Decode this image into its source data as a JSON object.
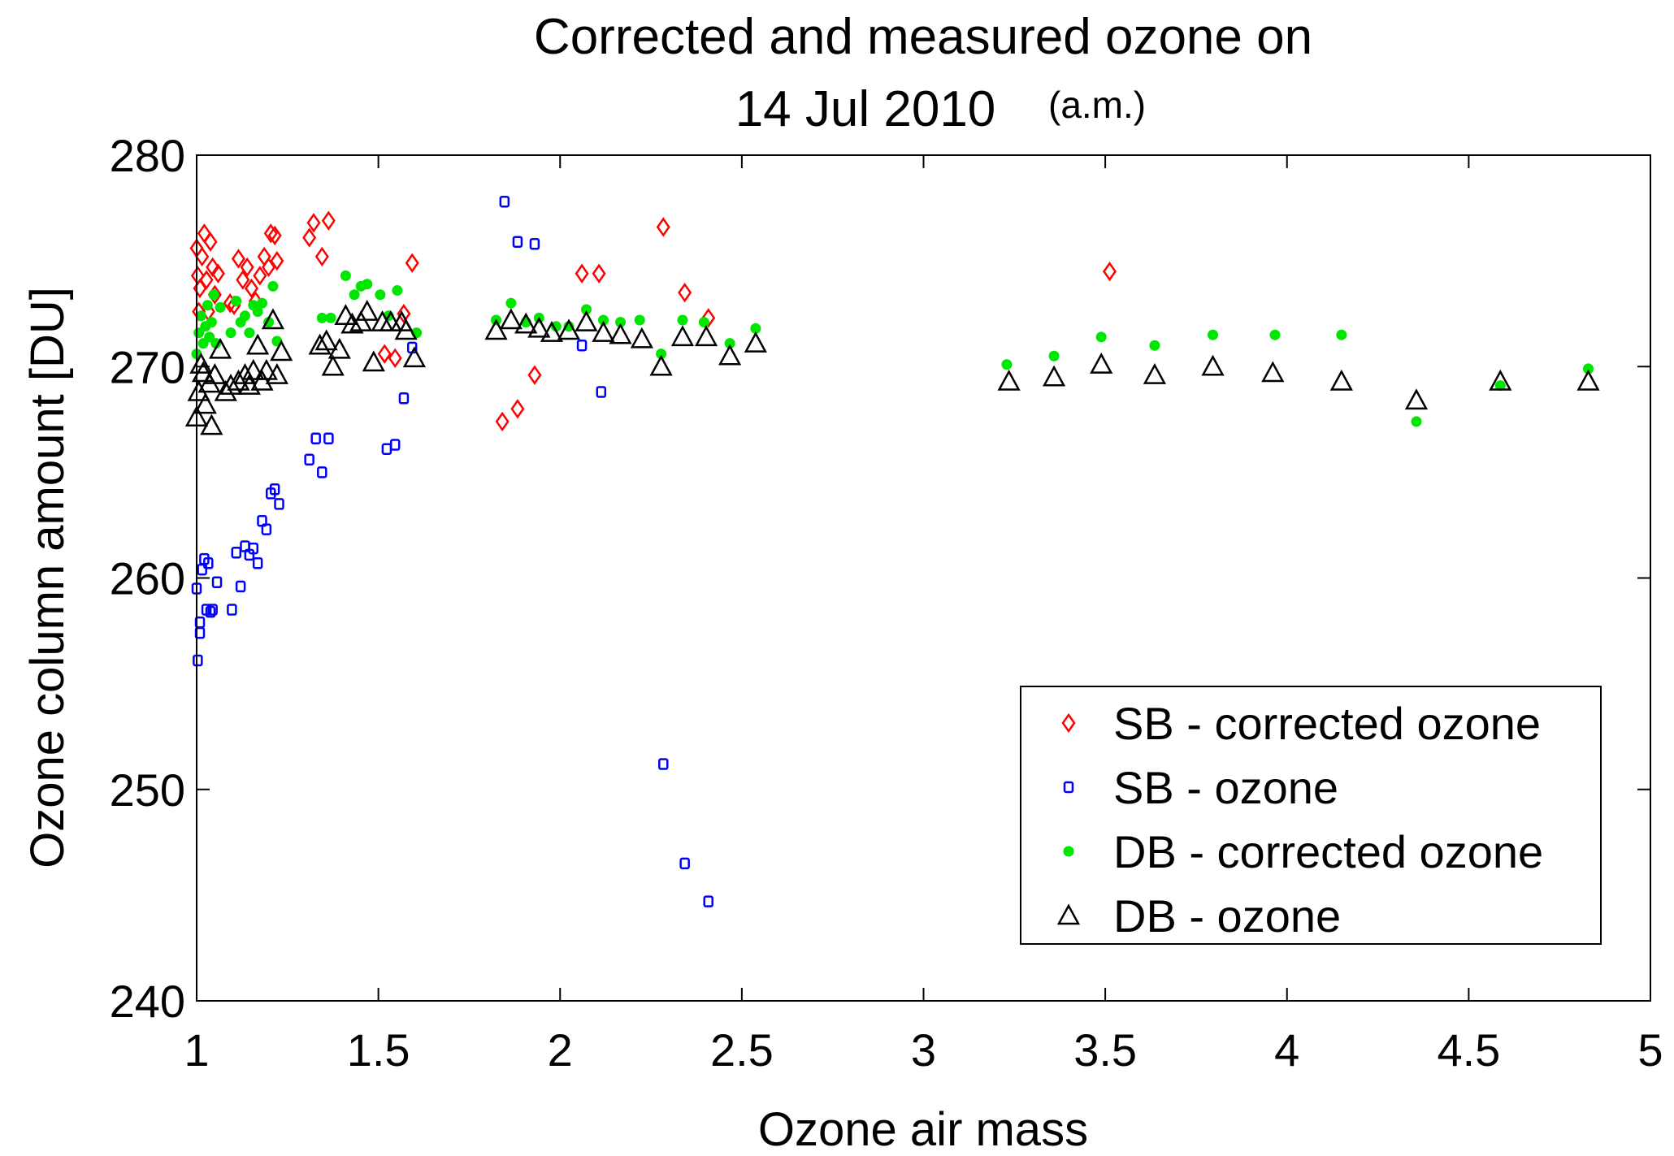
{
  "chart_data": {
    "type": "scatter",
    "title_line1": "Corrected and measured ozone on",
    "title_line2": "14 Jul 2010",
    "title_suffix": "(a.m.)",
    "xlabel": "Ozone air mass",
    "ylabel": "Ozone column amount [DU]",
    "xlim": [
      1,
      5
    ],
    "ylim": [
      240,
      280
    ],
    "xticks": [
      "1",
      "1.5",
      "2",
      "2.5",
      "3",
      "3.5",
      "4",
      "4.5",
      "5"
    ],
    "yticks": [
      "240",
      "250",
      "260",
      "270",
      "280"
    ],
    "grid": false,
    "legend_position": "bottom-right",
    "series": [
      {
        "name": "SB - corrected ozone",
        "marker": "diamond",
        "color": "#ff0000",
        "x": [
          1.0,
          1.003,
          1.009,
          1.015,
          1.021,
          1.027,
          1.032,
          1.038,
          1.044,
          1.05,
          1.059,
          1.006,
          1.092,
          1.103,
          1.115,
          1.127,
          1.139,
          1.151,
          1.162,
          1.174,
          1.186,
          1.198,
          1.204,
          1.215,
          1.221,
          1.31,
          1.322,
          1.345,
          1.363,
          1.57,
          1.517,
          1.546,
          1.593,
          1.841,
          1.883,
          1.93,
          2.06,
          2.107,
          2.284,
          2.343,
          2.408,
          3.512
        ],
        "y": [
          275.6,
          274.3,
          273.7,
          275.2,
          276.3,
          274.1,
          272.6,
          275.9,
          274.7,
          273.4,
          274.4,
          272.6,
          273.0,
          272.9,
          275.1,
          274.1,
          274.7,
          273.7,
          273.1,
          274.3,
          275.2,
          274.7,
          276.3,
          276.2,
          275.0,
          276.1,
          276.8,
          275.2,
          276.9,
          272.5,
          270.6,
          270.4,
          274.9,
          267.4,
          268.0,
          269.6,
          274.4,
          274.4,
          276.6,
          273.5,
          272.3,
          274.5
        ]
      },
      {
        "name": "SB - ozone",
        "marker": "square",
        "color": "#0000ff",
        "x": [
          1.0,
          1.003,
          1.009,
          1.015,
          1.021,
          1.027,
          1.032,
          1.038,
          1.044,
          1.056,
          1.009,
          1.097,
          1.109,
          1.121,
          1.133,
          1.145,
          1.156,
          1.168,
          1.18,
          1.192,
          1.204,
          1.215,
          1.227,
          1.31,
          1.328,
          1.345,
          1.363,
          1.523,
          1.546,
          1.57,
          1.593,
          1.847,
          1.883,
          1.93,
          2.06,
          2.113,
          2.284,
          2.343,
          2.408
        ],
        "y": [
          259.5,
          256.1,
          257.4,
          260.4,
          260.9,
          258.5,
          260.7,
          258.4,
          258.5,
          259.8,
          257.9,
          258.5,
          261.2,
          259.6,
          261.5,
          261.1,
          261.4,
          260.7,
          262.7,
          262.3,
          264.0,
          264.2,
          263.5,
          265.6,
          266.6,
          265.0,
          266.6,
          266.1,
          266.3,
          268.5,
          270.9,
          277.8,
          275.9,
          275.8,
          271.0,
          268.8,
          251.2,
          246.5,
          244.7
        ]
      },
      {
        "name": "DB - corrected ozone",
        "marker": "dot",
        "color": "#00e600",
        "x": [
          1.0,
          1.006,
          1.012,
          1.018,
          1.024,
          1.03,
          1.035,
          1.041,
          1.047,
          1.053,
          1.065,
          1.094,
          1.109,
          1.121,
          1.133,
          1.145,
          1.156,
          1.168,
          1.18,
          1.198,
          1.21,
          1.221,
          1.345,
          1.369,
          1.41,
          1.434,
          1.452,
          1.469,
          1.505,
          1.528,
          1.552,
          1.605,
          1.824,
          1.865,
          1.906,
          1.942,
          1.989,
          2.024,
          2.072,
          2.119,
          2.166,
          2.219,
          2.278,
          2.337,
          2.396,
          2.467,
          2.538,
          3.229,
          3.359,
          3.489,
          3.636,
          3.796,
          3.967,
          4.15,
          4.356,
          4.587,
          4.829
        ],
        "y": [
          270.6,
          271.6,
          272.4,
          271.1,
          271.9,
          272.9,
          271.4,
          272.1,
          273.4,
          271.1,
          272.8,
          271.6,
          273.1,
          272.1,
          272.4,
          271.6,
          272.9,
          272.6,
          273.0,
          272.1,
          273.8,
          271.2,
          272.3,
          272.3,
          274.3,
          273.4,
          273.8,
          273.9,
          273.4,
          272.4,
          273.6,
          271.6,
          272.2,
          273.0,
          272.1,
          272.3,
          271.9,
          271.9,
          272.7,
          272.2,
          272.1,
          272.2,
          270.6,
          272.2,
          272.1,
          271.1,
          271.8,
          270.1,
          270.5,
          271.4,
          271.0,
          271.5,
          271.5,
          271.5,
          267.4,
          269.1,
          269.9
        ]
      },
      {
        "name": "DB - ozone",
        "marker": "triangle",
        "color": "#000000",
        "x": [
          1.0,
          1.006,
          1.012,
          1.018,
          1.024,
          1.035,
          1.041,
          1.05,
          1.065,
          1.08,
          1.094,
          1.115,
          1.133,
          1.145,
          1.156,
          1.168,
          1.18,
          1.192,
          1.21,
          1.221,
          1.233,
          1.339,
          1.357,
          1.375,
          1.393,
          1.41,
          1.428,
          1.452,
          1.469,
          1.487,
          1.511,
          1.534,
          1.564,
          1.576,
          1.599,
          1.824,
          1.865,
          1.906,
          1.942,
          1.977,
          2.024,
          2.072,
          2.119,
          2.166,
          2.225,
          2.278,
          2.337,
          2.402,
          2.467,
          2.538,
          3.235,
          3.359,
          3.489,
          3.636,
          3.796,
          3.961,
          4.15,
          4.356,
          4.587,
          4.829
        ],
        "y": [
          267.6,
          268.8,
          270.1,
          269.7,
          268.2,
          269.2,
          267.2,
          269.6,
          270.8,
          268.8,
          269.1,
          269.3,
          269.6,
          269.1,
          269.8,
          271.0,
          269.3,
          269.8,
          272.2,
          269.6,
          270.7,
          271.0,
          271.2,
          270.0,
          270.8,
          272.4,
          272.0,
          272.1,
          272.6,
          270.2,
          272.1,
          272.1,
          272.1,
          271.7,
          270.4,
          271.7,
          272.2,
          272.0,
          271.8,
          271.6,
          271.7,
          272.1,
          271.6,
          271.5,
          271.3,
          270.0,
          271.4,
          271.4,
          270.5,
          271.1,
          269.3,
          269.5,
          270.1,
          269.6,
          270.0,
          269.7,
          269.3,
          268.4,
          269.3,
          269.3
        ]
      }
    ]
  }
}
